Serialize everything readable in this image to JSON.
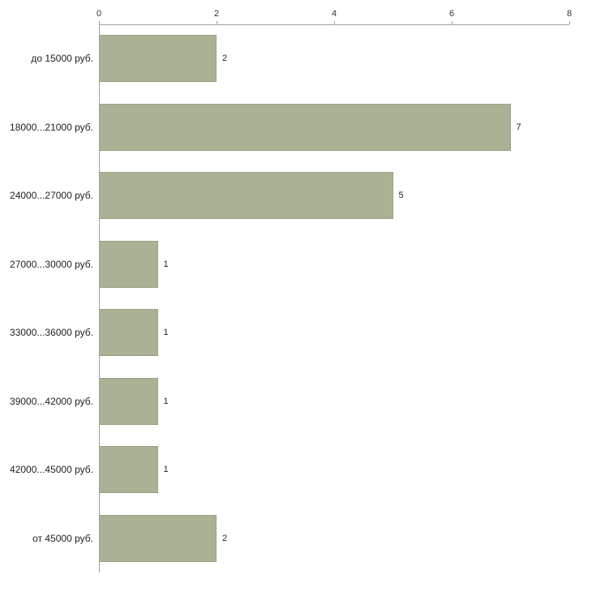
{
  "chart_data": {
    "type": "bar",
    "orientation": "horizontal",
    "title": "",
    "xlabel": "",
    "ylabel": "",
    "categories": [
      "до 15000 руб.",
      "18000...21000 руб.",
      "24000...27000 руб.",
      "27000...30000 руб.",
      "33000...36000 руб.",
      "39000...42000 руб.",
      "42000...45000 руб.",
      "от 45000 руб."
    ],
    "values": [
      2,
      7,
      5,
      1,
      1,
      1,
      1,
      2
    ],
    "x_ticks": [
      0,
      2,
      4,
      6,
      8
    ],
    "xlim": [
      0,
      8
    ],
    "grid": false,
    "legend": false,
    "value_labels_shown": true,
    "colors": {
      "bar_fill": "#a9b294",
      "bar_border": "#99a283",
      "axis": "#a3a3a3",
      "text": "#222222",
      "background": "#ffffff"
    }
  }
}
